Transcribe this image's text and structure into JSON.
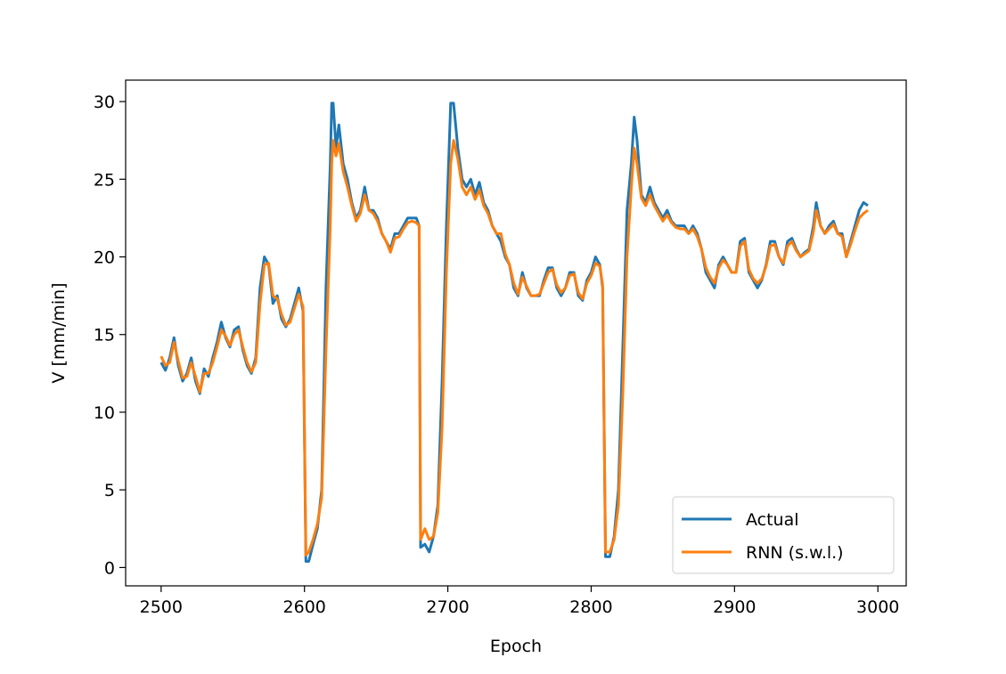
{
  "chart_data": {
    "type": "line",
    "xlabel": "Epoch",
    "ylabel": "V [mm/min]",
    "x": [
      2500,
      2503,
      2506,
      2509,
      2512,
      2515,
      2518,
      2521,
      2524,
      2527,
      2530,
      2533,
      2536,
      2539,
      2542,
      2545,
      2548,
      2551,
      2554,
      2557,
      2560,
      2563,
      2566,
      2569,
      2572,
      2575,
      2578,
      2581,
      2584,
      2587,
      2590,
      2593,
      2596,
      2599,
      2601,
      2603,
      2606,
      2609,
      2612,
      2615,
      2618,
      2619,
      2620,
      2622,
      2624,
      2627,
      2630,
      2633,
      2636,
      2639,
      2642,
      2645,
      2648,
      2651,
      2654,
      2657,
      2660,
      2663,
      2666,
      2669,
      2672,
      2675,
      2678,
      2680,
      2681,
      2684,
      2687,
      2690,
      2693,
      2696,
      2699,
      2702,
      2704,
      2707,
      2710,
      2713,
      2716,
      2719,
      2722,
      2725,
      2728,
      2731,
      2734,
      2737,
      2740,
      2743,
      2746,
      2749,
      2752,
      2755,
      2758,
      2761,
      2764,
      2767,
      2770,
      2773,
      2776,
      2779,
      2782,
      2785,
      2788,
      2791,
      2794,
      2797,
      2800,
      2803,
      2806,
      2808,
      2810,
      2813,
      2816,
      2819,
      2822,
      2825,
      2828,
      2830,
      2832,
      2835,
      2838,
      2841,
      2844,
      2847,
      2850,
      2853,
      2856,
      2859,
      2862,
      2865,
      2868,
      2871,
      2874,
      2877,
      2880,
      2883,
      2886,
      2889,
      2892,
      2895,
      2898,
      2901,
      2904,
      2907,
      2910,
      2913,
      2916,
      2919,
      2922,
      2925,
      2928,
      2931,
      2934,
      2937,
      2940,
      2943,
      2946,
      2949,
      2952,
      2955,
      2957,
      2960,
      2963,
      2966,
      2969,
      2972,
      2975,
      2978,
      2981,
      2984,
      2987,
      2990,
      2993
    ],
    "series": [
      {
        "name": "Actual",
        "color": "#1f77b4",
        "values": [
          13.2,
          12.7,
          13.5,
          14.8,
          13,
          12,
          12.5,
          13.5,
          12,
          11.2,
          12.8,
          12.3,
          13.5,
          14.5,
          15.8,
          14.8,
          14.2,
          15.3,
          15.5,
          14,
          13,
          12.5,
          13.5,
          18,
          20,
          19.5,
          17,
          17.5,
          16,
          15.5,
          16,
          17,
          18,
          16.5,
          0.4,
          0.4,
          1.5,
          2.5,
          5,
          18,
          26,
          29.9,
          29.9,
          27,
          28.5,
          26,
          25,
          23.5,
          22.5,
          23,
          24.5,
          23,
          23,
          22.5,
          21.5,
          21,
          20.5,
          21.5,
          21.5,
          22,
          22.5,
          22.5,
          22.5,
          22,
          1.3,
          1.5,
          1,
          2,
          4,
          12,
          22,
          29.9,
          29.9,
          27,
          25,
          24.5,
          25,
          24,
          24.8,
          23.5,
          23,
          22,
          21.5,
          21,
          20,
          19.5,
          18,
          17.5,
          19,
          18,
          17.5,
          17.5,
          17.5,
          18.5,
          19.3,
          19.3,
          18,
          17.5,
          18,
          19,
          19,
          17.5,
          17.2,
          18.5,
          19,
          20,
          19.5,
          18,
          0.7,
          0.7,
          2,
          5,
          14,
          23,
          26,
          29,
          27.5,
          24,
          23.5,
          24.5,
          23.5,
          23,
          22.5,
          23,
          22.3,
          22,
          22,
          22,
          21.5,
          22,
          21.5,
          20.5,
          19,
          18.5,
          18,
          19.5,
          20,
          19.5,
          19,
          19,
          21,
          21.2,
          19,
          18.5,
          18,
          18.5,
          19.5,
          21,
          21,
          20,
          19.5,
          21,
          21.2,
          20.5,
          20,
          20.3,
          20.5,
          22,
          23.5,
          22,
          21.5,
          22,
          22.3,
          21.5,
          21.5,
          20,
          21,
          22,
          23,
          23.5,
          23.3
        ]
      },
      {
        "name": "RNN (s.w.l.)",
        "color": "#ff7f0e",
        "values": [
          13.6,
          13,
          13.2,
          14.5,
          13.3,
          12.2,
          12.3,
          13.2,
          12.3,
          11.3,
          12.5,
          12.5,
          13.2,
          14.2,
          15.3,
          14.9,
          14.3,
          15,
          15.3,
          14.2,
          13.2,
          12.6,
          13.2,
          17,
          19.5,
          19.6,
          17.5,
          17.3,
          16.3,
          15.6,
          15.8,
          16.7,
          17.6,
          16.8,
          0.8,
          1,
          1.8,
          2.8,
          4.5,
          14,
          22,
          26,
          27.5,
          26.5,
          27.3,
          25.5,
          24.5,
          23.3,
          22.3,
          22.8,
          24,
          23,
          22.8,
          22.3,
          21.5,
          21,
          20.3,
          21.2,
          21.3,
          21.8,
          22.2,
          22.3,
          22.2,
          22,
          1.8,
          2.5,
          1.8,
          2,
          3.5,
          9,
          19,
          26,
          27.5,
          26.3,
          24.5,
          24,
          24.5,
          23.7,
          24.3,
          23.3,
          22.8,
          22,
          21.5,
          21.5,
          20.2,
          19.5,
          18.3,
          17.6,
          18.7,
          18.1,
          17.5,
          17.5,
          17.6,
          18.3,
          19,
          19.2,
          18.2,
          17.7,
          18,
          18.8,
          18.9,
          17.7,
          17.3,
          18.3,
          18.8,
          19.6,
          19.4,
          18.2,
          1,
          1,
          1.8,
          4,
          11,
          20,
          24.5,
          27,
          26,
          23.8,
          23.3,
          24,
          23.3,
          22.8,
          22.3,
          22.7,
          22.2,
          21.9,
          21.8,
          21.8,
          21.5,
          21.8,
          21.3,
          20.5,
          19.3,
          18.7,
          18.3,
          19.3,
          19.8,
          19.5,
          19,
          19,
          20.7,
          21,
          19.2,
          18.6,
          18.3,
          18.6,
          19.4,
          20.7,
          20.8,
          20,
          19.6,
          20.7,
          21,
          20.4,
          20,
          20.2,
          20.4,
          21.6,
          23,
          22,
          21.5,
          21.8,
          22.1,
          21.5,
          21.3,
          20,
          20.8,
          21.7,
          22.5,
          22.8,
          23
        ]
      }
    ],
    "xlim": [
      2475.25,
      3019.75
    ],
    "xticks": [
      2500,
      2600,
      2700,
      2800,
      2900,
      3000
    ],
    "ylim": [
      -1.18,
      31.38
    ],
    "yticks": [
      0,
      5,
      10,
      15,
      20,
      25,
      30
    ],
    "legend": "lower right"
  }
}
